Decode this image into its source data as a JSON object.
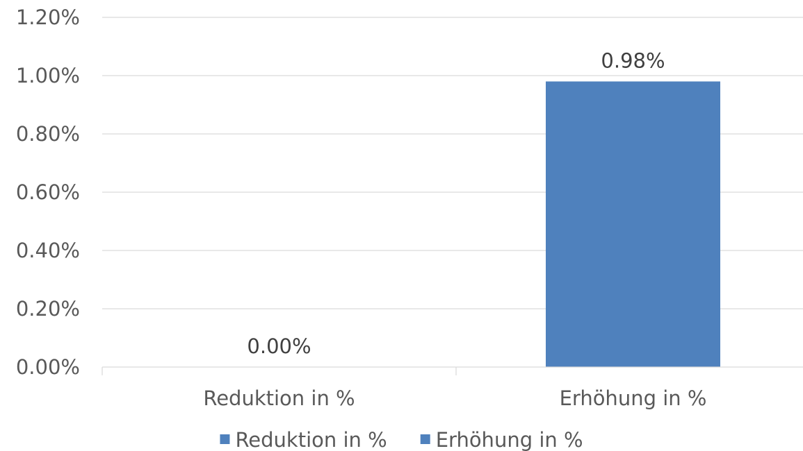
{
  "chart_data": {
    "type": "bar",
    "categories": [
      "Reduktion in %",
      "Erhöhung in %"
    ],
    "series": [
      {
        "name": "Reduktion in %",
        "values": [
          0.0,
          null
        ],
        "color": "#4f81bd"
      },
      {
        "name": "Erhöhung in %",
        "values": [
          null,
          0.98
        ],
        "color": "#4f81bd"
      }
    ],
    "data_labels": [
      "0.00%",
      "0.98%"
    ],
    "y_ticks": [
      "0.00%",
      "0.20%",
      "0.40%",
      "0.60%",
      "0.80%",
      "1.00%",
      "1.20%"
    ],
    "ylim": [
      0,
      1.2
    ],
    "grid": true,
    "legend_position": "bottom",
    "title": "",
    "xlabel": "",
    "ylabel": ""
  }
}
